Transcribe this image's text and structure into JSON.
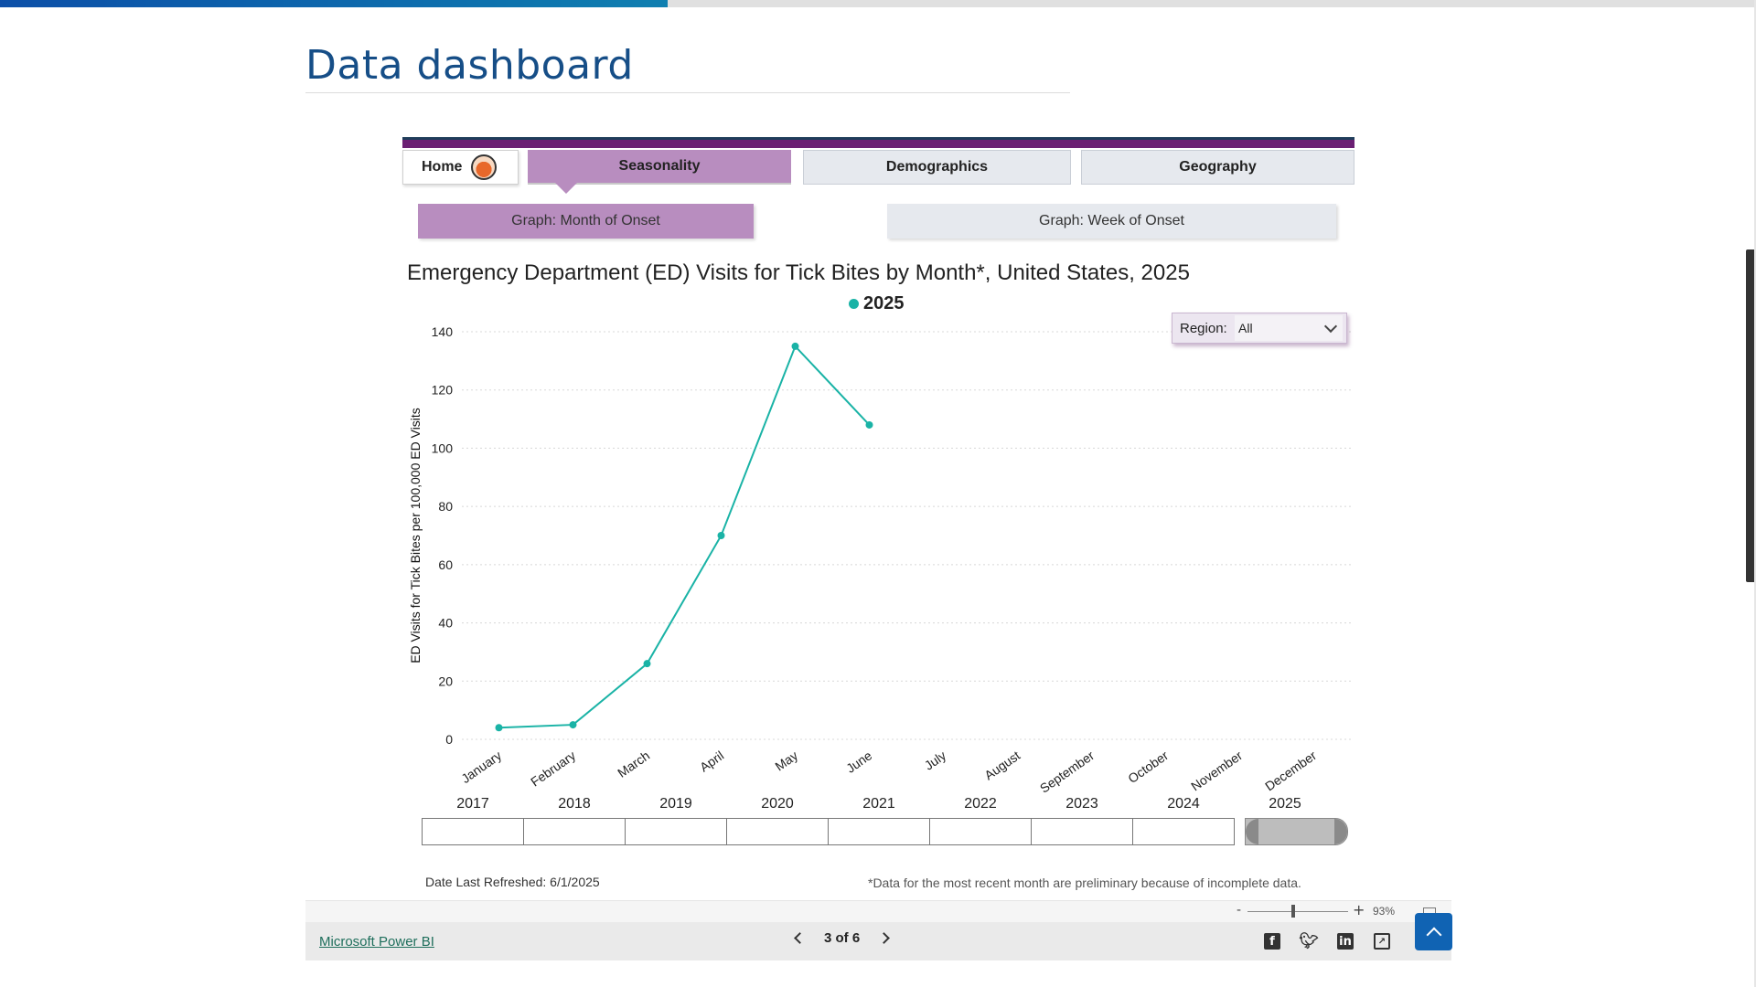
{
  "page": {
    "title": "Data dashboard",
    "progress_percent": 38
  },
  "tabs": {
    "home": "Home",
    "seasonality": "Seasonality",
    "demographics": "Demographics",
    "geography": "Geography",
    "active": "Seasonality"
  },
  "subtabs": {
    "month": "Graph: Month of Onset",
    "week": "Graph: Week of Onset",
    "active": "Graph: Month of Onset"
  },
  "region_filter": {
    "label": "Region:",
    "value": "All"
  },
  "chart_data": {
    "type": "line",
    "title": "Emergency Department (ED) Visits for Tick Bites by Month*, United States, 2025",
    "ylabel": "ED Visits for Tick Bites per 100,000 ED Visits",
    "xlabel": "",
    "ylim": [
      0,
      140
    ],
    "yticks": [
      0,
      20,
      40,
      60,
      80,
      100,
      120,
      140
    ],
    "categories": [
      "January",
      "February",
      "March",
      "April",
      "May",
      "June",
      "July",
      "August",
      "September",
      "October",
      "November",
      "December"
    ],
    "series": [
      {
        "name": "2025",
        "color": "#1ab3a6",
        "values": [
          4,
          5,
          26,
          70,
          135,
          108,
          null,
          null,
          null,
          null,
          null,
          null
        ]
      }
    ],
    "grid": true,
    "legend": "top-center"
  },
  "year_slicer": {
    "years": [
      "2017",
      "2018",
      "2019",
      "2020",
      "2021",
      "2022",
      "2023",
      "2024",
      "2025"
    ],
    "selected": "2025"
  },
  "footer": {
    "refreshed": "Date Last Refreshed: 6/1/2025",
    "note": "*Data for the most recent month are preliminary because of incomplete data."
  },
  "zoom": {
    "minus": "-",
    "plus": "+",
    "percent": "93%"
  },
  "powerbi": {
    "link": "Microsoft Power BI",
    "pager": "3 of 6"
  },
  "icons": {
    "home": "home-globe-icon",
    "facebook": "facebook-icon",
    "twitter": "twitter-icon",
    "linkedin": "linkedin-icon",
    "share": "share-icon",
    "back_to_top": "chevron-up-icon"
  }
}
